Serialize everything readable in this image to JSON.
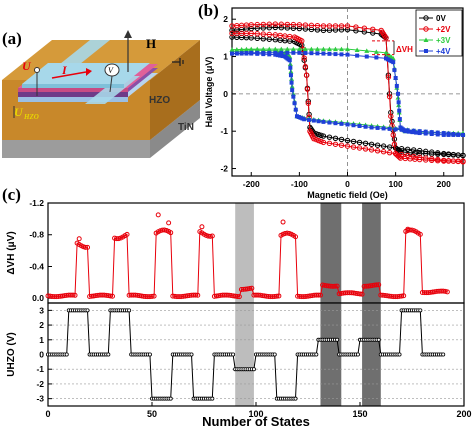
{
  "panel_labels": {
    "a": "(a)",
    "b": "(b)",
    "c": "(c)"
  },
  "schematic": {
    "field_label": "H",
    "current_label": "I",
    "voltage_label": "V",
    "hall_voltage_label": "VH",
    "bias_label": "U",
    "bias_subscript": "HZO",
    "layer_hzo": "HZO",
    "layer_tin": "TiN",
    "colors": {
      "top": "#a7d8ea",
      "pink": "#e0609a",
      "purple": "#8a4fa6",
      "hzo": "#b8d5ef",
      "tin": "#c8882a",
      "base": "#a9a9a9"
    }
  },
  "chart_data": [
    {
      "type": "line",
      "id": "hall-loop",
      "xlabel": "Magnetic field (Oe)",
      "ylabel": "Hall Voltage (μV)",
      "xlim": [
        -240,
        240
      ],
      "ylim": [
        -2.2,
        2.3
      ],
      "xticks": [
        "-200",
        "-100",
        "0",
        "100",
        "200"
      ],
      "yticks": [
        "-2",
        "-1",
        "0",
        "1",
        "2"
      ],
      "legend_position": "top-right",
      "annotation": "ΔVH",
      "series": [
        {
          "name": "0V",
          "color": "#000000",
          "marker": "circle",
          "x_down": [
            -240,
            -200,
            -150,
            -110,
            -95,
            -85,
            -78,
            -70,
            -50,
            0,
            50,
            100,
            150,
            200,
            240
          ],
          "y_down": [
            1.52,
            1.5,
            1.45,
            1.4,
            1.3,
            0.5,
            -0.9,
            -1.05,
            -1.13,
            -1.25,
            -1.35,
            -1.45,
            -1.52,
            -1.6,
            -1.65
          ],
          "x_up": [
            240,
            200,
            150,
            110,
            100,
            90,
            80,
            70,
            0,
            -50,
            -100,
            -150,
            -200,
            -240
          ],
          "y_up": [
            -1.65,
            -1.62,
            -1.6,
            -1.55,
            -1.45,
            -0.5,
            1.5,
            1.6,
            1.72,
            1.7,
            1.75,
            1.78,
            1.75,
            1.7
          ]
        },
        {
          "name": "+2V",
          "color": "#e8000b",
          "marker": "circle",
          "x_down": [
            -240,
            -200,
            -150,
            -110,
            -95,
            -85,
            -78,
            -70,
            -50,
            0,
            50,
            100,
            150,
            200,
            240
          ],
          "y_down": [
            1.62,
            1.62,
            1.58,
            1.52,
            1.42,
            0.5,
            -1.0,
            -1.2,
            -1.3,
            -1.4,
            -1.5,
            -1.6,
            -1.7,
            -1.78,
            -1.82
          ],
          "x_up": [
            240,
            200,
            150,
            110,
            100,
            90,
            80,
            70,
            0,
            -50,
            -100,
            -150,
            -200,
            -240
          ],
          "y_up": [
            -1.8,
            -1.8,
            -1.76,
            -1.72,
            -1.6,
            -0.6,
            1.5,
            1.7,
            1.82,
            1.82,
            1.85,
            1.87,
            1.85,
            1.82
          ]
        },
        {
          "name": "+3V",
          "color": "#2ecc40",
          "marker": "triangle",
          "x_down": [
            -240,
            -200,
            -150,
            -130,
            -120,
            -115,
            -105,
            -90,
            -50,
            0,
            50,
            100,
            150,
            200,
            240
          ],
          "y_down": [
            1.18,
            1.18,
            1.15,
            1.1,
            1.0,
            0.2,
            -0.6,
            -0.65,
            -0.72,
            -0.78,
            -0.85,
            -0.92,
            -1.0,
            -1.05,
            -1.08
          ],
          "x_up": [
            240,
            200,
            150,
            120,
            110,
            105,
            95,
            80,
            0,
            -50,
            -100,
            -150,
            -200,
            -240
          ],
          "y_up": [
            -1.05,
            -1.05,
            -1.02,
            -1.0,
            -0.9,
            -0.1,
            0.95,
            1.1,
            1.2,
            1.2,
            1.2,
            1.2,
            1.2,
            1.18
          ]
        },
        {
          "name": "+4V",
          "color": "#1f3fd8",
          "marker": "square",
          "x_down": [
            -240,
            -200,
            -150,
            -130,
            -120,
            -115,
            -105,
            -90,
            -50,
            0,
            50,
            100,
            150,
            200,
            240
          ],
          "y_down": [
            1.08,
            1.08,
            1.05,
            1.0,
            0.9,
            0.1,
            -0.6,
            -0.68,
            -0.75,
            -0.82,
            -0.9,
            -0.95,
            -1.0,
            -1.05,
            -1.1
          ],
          "x_up": [
            240,
            200,
            150,
            120,
            110,
            105,
            95,
            80,
            0,
            -50,
            -100,
            -150,
            -200,
            -240
          ],
          "y_up": [
            -1.1,
            -1.1,
            -1.05,
            -1.0,
            -0.9,
            0.0,
            0.85,
            0.95,
            1.05,
            1.08,
            1.1,
            1.1,
            1.1,
            1.08
          ]
        }
      ]
    },
    {
      "type": "line",
      "id": "states-dvh",
      "ylabel": "ΔVH (μV)",
      "ylim": [
        -1.2,
        0.06
      ],
      "yticks": [
        "-1.2",
        "-0.8",
        "-0.4",
        "0.0"
      ],
      "xlim": [
        0,
        200
      ],
      "series": [
        {
          "name": "ΔVH",
          "color": "#e8000b"
        }
      ],
      "segments": [
        {
          "x0": 0,
          "x1": 14,
          "y": -0.03
        },
        {
          "x0": 14,
          "x1": 20,
          "y": -0.68
        },
        {
          "x0": 20,
          "x1": 32,
          "y": -0.03
        },
        {
          "x0": 32,
          "x1": 39,
          "y": -0.79
        },
        {
          "x0": 39,
          "x1": 52,
          "y": -0.03
        },
        {
          "x0": 52,
          "x1": 60,
          "y": -0.82
        },
        {
          "x0": 60,
          "x1": 73,
          "y": -0.03
        },
        {
          "x0": 73,
          "x1": 80,
          "y": -0.82
        },
        {
          "x0": 80,
          "x1": 93,
          "y": -0.03
        },
        {
          "x0": 93,
          "x1": 99,
          "y": -0.12
        },
        {
          "x0": 99,
          "x1": 112,
          "y": -0.03
        },
        {
          "x0": 112,
          "x1": 120,
          "y": -0.78
        },
        {
          "x0": 120,
          "x1": 132,
          "y": -0.03
        },
        {
          "x0": 132,
          "x1": 140,
          "y": -0.16
        },
        {
          "x0": 140,
          "x1": 152,
          "y": -0.06
        },
        {
          "x0": 152,
          "x1": 160,
          "y": -0.16
        },
        {
          "x0": 160,
          "x1": 172,
          "y": -0.03
        },
        {
          "x0": 172,
          "x1": 180,
          "y": -0.82
        },
        {
          "x0": 180,
          "x1": 192,
          "y": -0.08
        }
      ],
      "spikes": [
        [
          15,
          -0.75
        ],
        [
          53,
          -1.05
        ],
        [
          58,
          -0.95
        ],
        [
          113,
          -0.96
        ],
        [
          74,
          -0.9
        ],
        [
          173,
          -0.87
        ]
      ]
    },
    {
      "type": "line",
      "id": "states-uhzo",
      "xlabel": "Number of States",
      "ylabel": "UHZO (V)",
      "ylim": [
        -3.5,
        3.5
      ],
      "yticks": [
        "-3",
        "-2",
        "-1",
        "0",
        "1",
        "2",
        "3"
      ],
      "xlim": [
        0,
        200
      ],
      "xticks": [
        "0",
        "50",
        "100",
        "150",
        "200"
      ],
      "series": [
        {
          "name": "UHZO",
          "color": "#000000"
        }
      ],
      "segments": [
        {
          "x0": 0,
          "x1": 10,
          "y": 0
        },
        {
          "x0": 10,
          "x1": 20,
          "y": 3
        },
        {
          "x0": 20,
          "x1": 30,
          "y": 0
        },
        {
          "x0": 30,
          "x1": 40,
          "y": 3
        },
        {
          "x0": 40,
          "x1": 50,
          "y": 0
        },
        {
          "x0": 50,
          "x1": 60,
          "y": -3
        },
        {
          "x0": 60,
          "x1": 70,
          "y": 0
        },
        {
          "x0": 70,
          "x1": 80,
          "y": -3
        },
        {
          "x0": 80,
          "x1": 90,
          "y": 0
        },
        {
          "x0": 90,
          "x1": 100,
          "y": -1
        },
        {
          "x0": 100,
          "x1": 110,
          "y": 0
        },
        {
          "x0": 110,
          "x1": 120,
          "y": -3
        },
        {
          "x0": 120,
          "x1": 130,
          "y": 0
        },
        {
          "x0": 130,
          "x1": 140,
          "y": 1
        },
        {
          "x0": 140,
          "x1": 150,
          "y": 0
        },
        {
          "x0": 150,
          "x1": 160,
          "y": 1
        },
        {
          "x0": 160,
          "x1": 170,
          "y": 0
        },
        {
          "x0": 170,
          "x1": 180,
          "y": 3
        },
        {
          "x0": 180,
          "x1": 190,
          "y": 0
        }
      ],
      "shaded_bands": [
        {
          "x0": 90,
          "x1": 99,
          "color": "#bdbdbd"
        },
        {
          "x0": 131,
          "x1": 141,
          "color": "#6f6f6f"
        },
        {
          "x0": 151,
          "x1": 160,
          "color": "#6f6f6f"
        }
      ]
    }
  ]
}
